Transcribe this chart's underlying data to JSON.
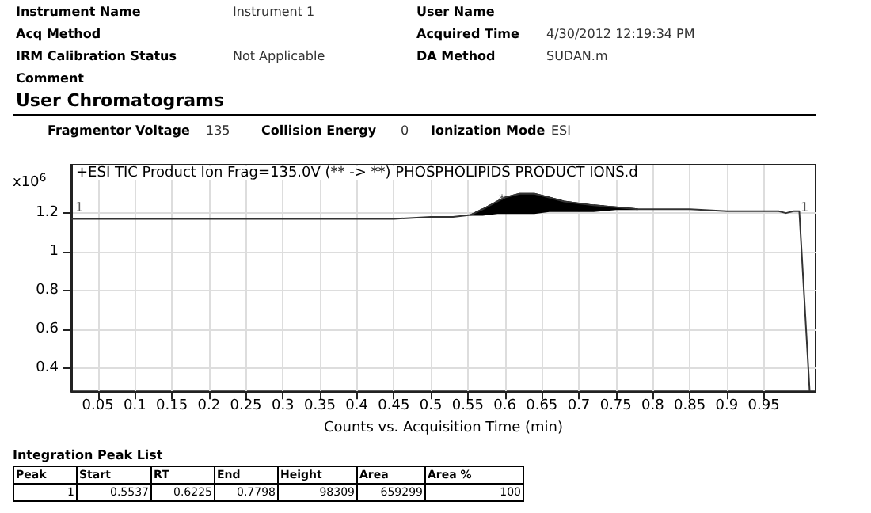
{
  "chart_data": {
    "type": "line",
    "title": "+ESI TIC Product Ion Frag=135.0V (** -> **) PHOSPHOLIPIDS PRODUCT IONS.d",
    "xlabel": "Counts vs. Acquisition Time (min)",
    "ylabel": "x10$^{6}$",
    "series": [
      {
        "color": "#333333",
        "x": [
          0.014,
          0.05,
          0.1,
          0.2,
          0.3,
          0.4,
          0.45,
          0.5,
          0.53,
          0.5537,
          0.57,
          0.59,
          0.6,
          0.62,
          0.64,
          0.66,
          0.68,
          0.7,
          0.72,
          0.75,
          0.7798,
          0.8,
          0.85,
          0.9,
          0.95,
          0.97,
          0.98,
          0.99,
          0.998,
          1.012
        ],
        "values": [
          1.17,
          1.17,
          1.17,
          1.17,
          1.17,
          1.17,
          1.17,
          1.18,
          1.18,
          1.19,
          1.22,
          1.26,
          1.28,
          1.3,
          1.3,
          1.28,
          1.26,
          1.25,
          1.24,
          1.23,
          1.22,
          1.22,
          1.22,
          1.21,
          1.21,
          1.21,
          1.2,
          1.21,
          1.21,
          0.28
        ],
        "lower": [
          null,
          null,
          null,
          null,
          null,
          null,
          null,
          null,
          null,
          1.19,
          1.19,
          1.2,
          1.2,
          1.2,
          1.2,
          1.21,
          1.21,
          1.21,
          1.21,
          1.22,
          1.22,
          null,
          null,
          null,
          null,
          null,
          null,
          null,
          null,
          null
        ],
        "upper": [
          null,
          null,
          null,
          null,
          null,
          null,
          null,
          null,
          null,
          1.19,
          1.22,
          1.26,
          1.28,
          1.3,
          1.3,
          1.28,
          1.26,
          1.25,
          1.24,
          1.23,
          1.22,
          null,
          null,
          null,
          null,
          null,
          null,
          null,
          null,
          null
        ]
      }
    ],
    "xlim": [
      0.014,
      1.02
    ],
    "ylim": [
      0.28,
      1.45
    ],
    "xticks": [
      0.05,
      0.1,
      0.15,
      0.2,
      0.25,
      0.3,
      0.35,
      0.4,
      0.45,
      0.5,
      0.55,
      0.6,
      0.65,
      0.7,
      0.75,
      0.8,
      0.85,
      0.9,
      0.95
    ],
    "yticks": [
      0.4,
      0.6,
      0.8,
      1,
      1.2
    ],
    "grid": true,
    "marker": "none",
    "line_style": "solid",
    "annotations": [
      "Instrument Name",
      "Instrument 1",
      "User Name",
      "Acq Method",
      "Acquired Time",
      "4/30/2012 12:19:34 PM",
      "IRM Calibration Status",
      "Not Applicable",
      "DA Method",
      "SUDAN.m",
      "Comment",
      "User Chromatograms",
      "Fragmentor Voltage",
      "135",
      "Collision Energy",
      "0",
      "Ionization Mode",
      "ESI",
      "Integration Peak List",
      "Peak",
      "Start",
      "RT",
      "End",
      "Height",
      "Area",
      "Area %",
      "1",
      "0.5537",
      "0.6225",
      "0.7798",
      "98309",
      "659299",
      "100",
      "1",
      "1",
      "*"
    ]
  }
}
